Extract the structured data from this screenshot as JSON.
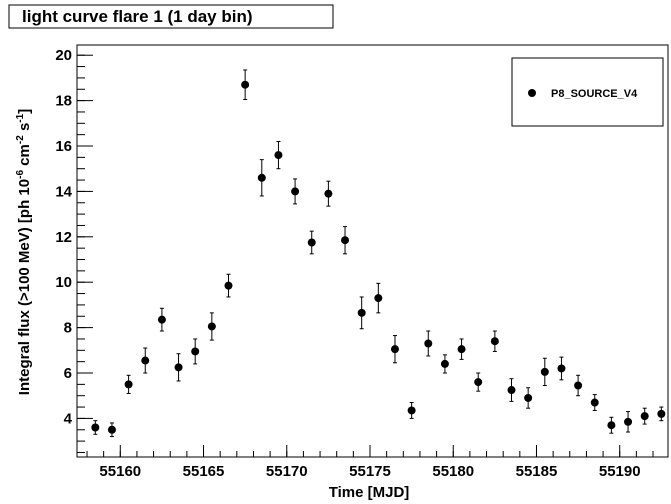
{
  "chart_data": {
    "type": "scatter",
    "title": "light curve flare 1 (1 day bin)",
    "xlabel": "Time [MJD]",
    "ylabel": [
      "Integral flux (>100 MeV) [ph 10",
      "-6",
      " cm",
      "-2",
      " s",
      "-1",
      "]"
    ],
    "xlim": [
      55157.4,
      55192.9
    ],
    "ylim": [
      2.3,
      20.45
    ],
    "xticks": [
      55160,
      55165,
      55170,
      55175,
      55180,
      55185,
      55190
    ],
    "yticks": [
      4,
      6,
      8,
      10,
      12,
      14,
      16,
      18,
      20
    ],
    "grid": false,
    "legend": "top-right",
    "series": [
      {
        "name": "P8_SOURCE_V4",
        "color": "#000000",
        "x": [
          55158.5,
          55159.5,
          55160.5,
          55161.5,
          55162.5,
          55163.5,
          55164.5,
          55165.5,
          55166.5,
          55167.5,
          55168.5,
          55169.5,
          55170.5,
          55171.5,
          55172.5,
          55173.5,
          55174.5,
          55175.5,
          55176.5,
          55177.5,
          55178.5,
          55179.5,
          55180.5,
          55181.5,
          55182.5,
          55183.5,
          55184.5,
          55185.5,
          55186.5,
          55187.5,
          55188.5,
          55189.5,
          55190.5,
          55191.5,
          55192.5
        ],
        "values": [
          3.6,
          3.5,
          5.5,
          6.55,
          8.35,
          6.25,
          6.95,
          8.05,
          9.85,
          18.7,
          14.6,
          15.6,
          14.0,
          11.75,
          13.9,
          11.85,
          8.65,
          9.3,
          7.05,
          4.35,
          7.3,
          6.4,
          7.05,
          5.6,
          7.4,
          5.25,
          4.9,
          6.05,
          6.2,
          5.45,
          4.7,
          3.7,
          3.85,
          4.1,
          4.2
        ],
        "errors": [
          0.3,
          0.3,
          0.4,
          0.55,
          0.5,
          0.6,
          0.55,
          0.6,
          0.5,
          0.65,
          0.8,
          0.6,
          0.55,
          0.5,
          0.55,
          0.6,
          0.7,
          0.65,
          0.6,
          0.35,
          0.55,
          0.4,
          0.45,
          0.4,
          0.45,
          0.5,
          0.45,
          0.6,
          0.5,
          0.45,
          0.35,
          0.35,
          0.45,
          0.35,
          0.3
        ]
      }
    ]
  }
}
